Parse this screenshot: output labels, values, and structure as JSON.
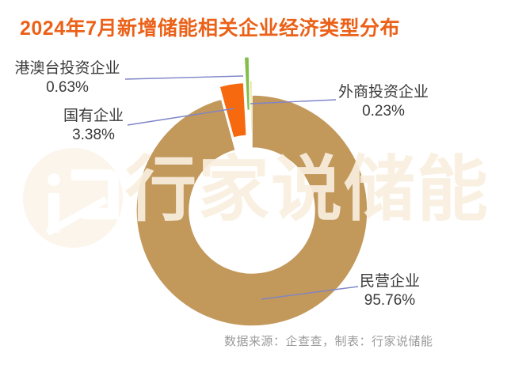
{
  "title": {
    "text": "2024年7月新增储能相关企业经济类型分布"
  },
  "chart_data": {
    "type": "pie",
    "donut": true,
    "title": "2024年7月新增储能相关企业经济类型分布",
    "unit": "%",
    "legend": "none",
    "label_style": "callout-leader-lines",
    "start_angle": "12-oclock",
    "direction": "clockwise",
    "slices": [
      {
        "label": "民营企业",
        "value": 95.76,
        "pct_text": "95.76%",
        "color": "#C2985B"
      },
      {
        "label": "国有企业",
        "value": 3.38,
        "pct_text": "3.38%",
        "color": "#F7690E"
      },
      {
        "label": "港澳台投资企业",
        "value": 0.63,
        "pct_text": "0.63%",
        "color": "#82BE48"
      },
      {
        "label": "外商投资企业",
        "value": 0.23,
        "pct_text": "0.23%",
        "color": "#D7CE55"
      }
    ]
  },
  "colors": {
    "title": "#EB6118",
    "label_text": "#3A3A3A",
    "leader_line": "#7E84C8",
    "source_text": "#9B9B9B",
    "watermark": "#F8EFDF",
    "background": "#FFFFFF"
  },
  "watermark": {
    "text": "行家说储能",
    "logo": "xingjiashuo-chuneng-logo"
  },
  "source": {
    "text": "数据来源：企查查，制表：行家说储能"
  }
}
